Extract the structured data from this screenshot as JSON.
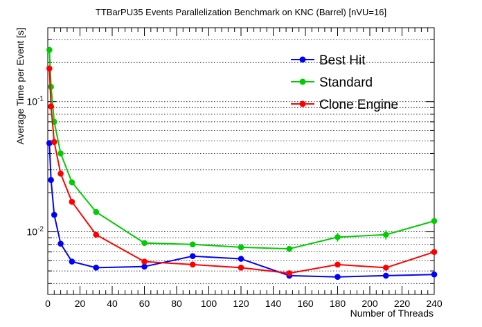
{
  "chart_data": {
    "type": "line",
    "title": "TTBarPU35 Events Parallelization Benchmark on KNC (Barrel) [nVU=16]",
    "xlabel": "Number of Threads",
    "ylabel": "Average Time per Event [s]",
    "xlim": [
      0,
      240
    ],
    "ylim": [
      0.0033,
      0.37
    ],
    "yscale": "log",
    "grid": "horizontal",
    "legend_position": "top-right",
    "x_ticks": [
      "0",
      "20",
      "40",
      "60",
      "80",
      "100",
      "120",
      "140",
      "160",
      "180",
      "200",
      "220",
      "240"
    ],
    "y_ticks": [
      {
        "value": 0.1,
        "base": "10",
        "exp": "-1"
      },
      {
        "value": 0.01,
        "base": "10",
        "exp": "-2"
      }
    ],
    "series": [
      {
        "name": "Best Hit",
        "color": "#0000ff",
        "x": [
          1,
          2,
          4,
          8,
          15,
          30,
          60,
          90,
          120,
          150,
          180,
          210,
          240
        ],
        "y": [
          0.048,
          0.025,
          0.0135,
          0.0081,
          0.0059,
          0.0053,
          0.0054,
          0.0065,
          0.0062,
          0.0046,
          0.0045,
          0.0046,
          0.0047
        ],
        "err": [
          0.002,
          0.001,
          0.0005,
          0.0003,
          0.0002,
          0.0002,
          0.0002,
          0.0003,
          0.0002,
          0.0002,
          0.0002,
          0.0002,
          0.0002
        ]
      },
      {
        "name": "Standard",
        "color": "#00cc00",
        "x": [
          1,
          2,
          4,
          8,
          15,
          30,
          60,
          90,
          120,
          150,
          180,
          210,
          240
        ],
        "y": [
          0.25,
          0.13,
          0.07,
          0.04,
          0.024,
          0.0142,
          0.0082,
          0.008,
          0.0076,
          0.0074,
          0.0091,
          0.0095,
          0.0121
        ],
        "err": [
          0.006,
          0.003,
          0.002,
          0.001,
          0.0006,
          0.0004,
          0.0003,
          0.0003,
          0.0003,
          0.0003,
          0.0007,
          0.0008,
          0.0006
        ]
      },
      {
        "name": "Clone Engine",
        "color": "#ff0000",
        "x": [
          1,
          2,
          4,
          8,
          15,
          30,
          60,
          90,
          120,
          150,
          180,
          210,
          240
        ],
        "y": [
          0.18,
          0.092,
          0.049,
          0.028,
          0.017,
          0.0095,
          0.0059,
          0.0056,
          0.0053,
          0.0048,
          0.0056,
          0.0053,
          0.007
        ],
        "err": [
          0.004,
          0.002,
          0.001,
          0.0008,
          0.0004,
          0.0003,
          0.0002,
          0.0002,
          0.0002,
          0.0002,
          0.0002,
          0.0002,
          0.0003
        ]
      }
    ]
  }
}
